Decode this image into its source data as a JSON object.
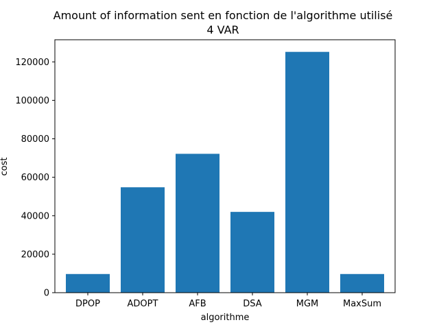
{
  "chart_data": {
    "type": "bar",
    "title": "Amount of information sent en fonction de l'algorithme utilisé",
    "subtitle": "4 VAR",
    "xlabel": "algorithme",
    "ylabel": "cost",
    "categories": [
      "DPOP",
      "ADOPT",
      "AFB",
      "DSA",
      "MGM",
      "MaxSum"
    ],
    "values": [
      9700,
      54800,
      72200,
      42000,
      125200,
      9700
    ],
    "ylim": [
      0,
      131500
    ],
    "yticks": [
      0,
      20000,
      40000,
      60000,
      80000,
      100000,
      120000
    ],
    "ytick_labels": [
      "0",
      "20000",
      "40000",
      "60000",
      "80000",
      "100000",
      "120000"
    ],
    "grid": false,
    "bar_color": "#1f77b4"
  }
}
